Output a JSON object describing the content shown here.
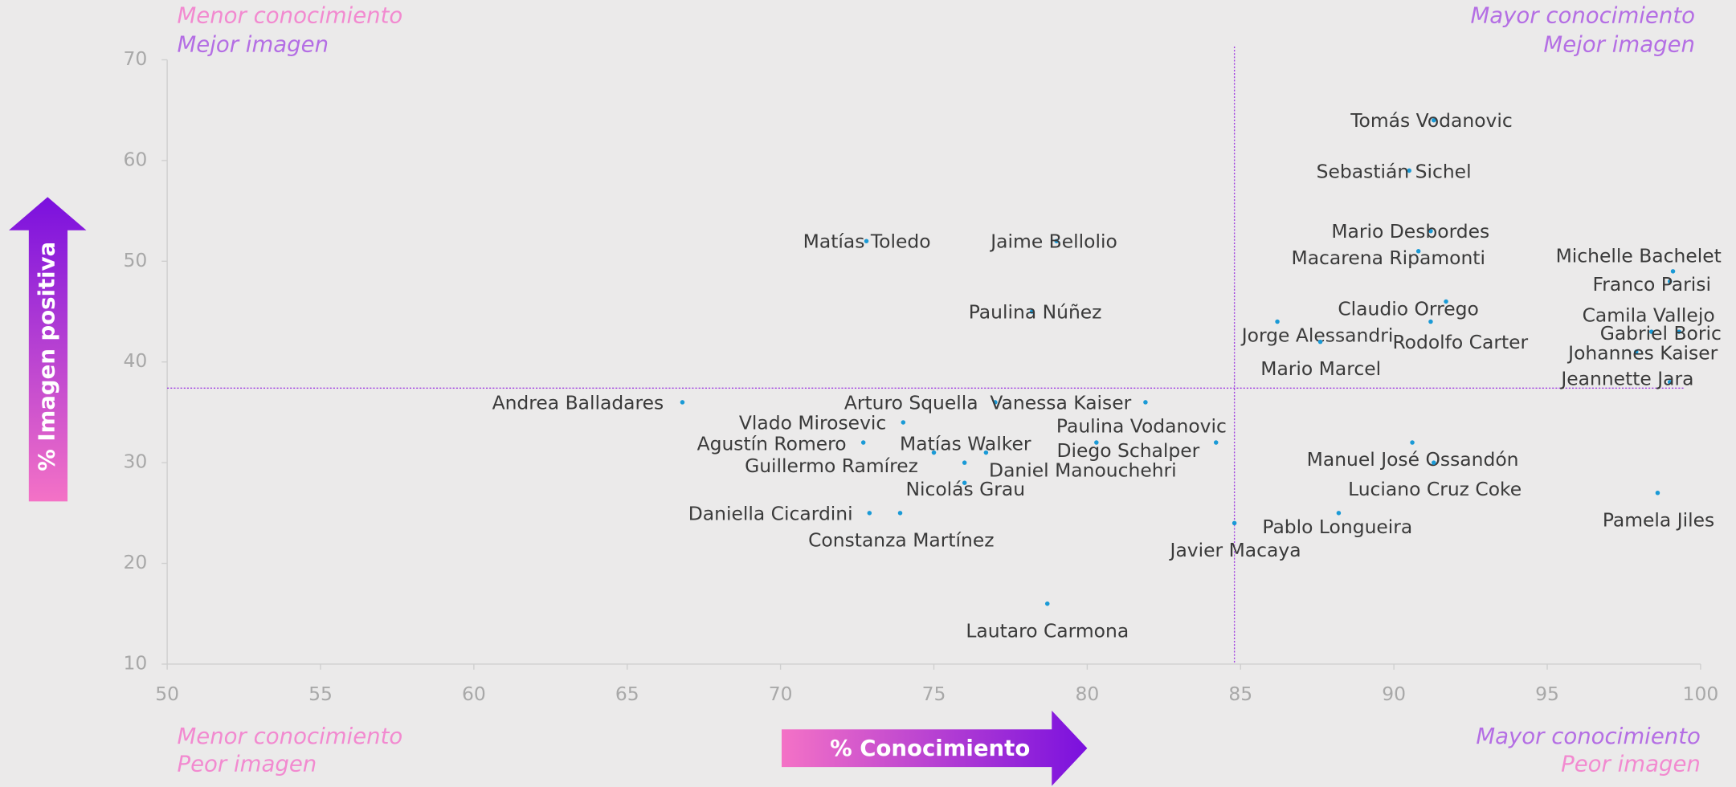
{
  "chart_data": {
    "type": "scatter",
    "x_label": "% Conocimiento",
    "y_label": "% Imagen positiva",
    "quadrants": {
      "top_left": [
        "Menor conocimiento",
        "Mejor imagen"
      ],
      "top_right": [
        "Mayor conocimiento",
        "Mejor imagen"
      ],
      "bottom_left": [
        "Menor conocimiento",
        "Peor imagen"
      ],
      "bottom_right": [
        "Mayor conocimiento",
        "Peor imagen"
      ]
    },
    "xlim": [
      50,
      100
    ],
    "xticks": [
      50,
      55,
      60,
      65,
      70,
      75,
      80,
      85,
      90,
      95,
      100
    ],
    "ylim": [
      10,
      70
    ],
    "yticks": [
      10,
      20,
      30,
      40,
      50,
      60,
      70
    ],
    "ref_x": 84.8,
    "ref_y": 37.4,
    "color": "#1a9ad6",
    "ref_color": "#a040e0",
    "labels": [
      "Tomás Vodanovic",
      "Sebastián Sichel",
      "Mario Desbordes",
      "Macarena Ripamonti",
      "Matías Toledo",
      "Jaime Bellolio",
      "Paulina Núñez",
      "Claudio Orrego",
      "Jorge Alessandri",
      "Rodolfo Carter",
      "Mario Marcel",
      "Michelle Bachelet",
      "Franco Parisi",
      "Camila Vallejo",
      "Gabriel Boric",
      "Johannes Kaiser",
      "Jeannette Jara",
      "Andrea Balladares",
      "Arturo Squella",
      "Vanessa Kaiser",
      "Vlado Mirosevic",
      "Paulina Vodanovic",
      "Agustín Romero",
      "Matías Walker",
      "Diego Schalper",
      "Guillermo Ramírez",
      "Daniel Manouchehri",
      "Manuel José Ossandón",
      "Nicolás Grau",
      "Luciano Cruz Coke",
      "Daniella Cicardini",
      "Constanza Martínez",
      "Pablo Longueira",
      "Javier Macaya",
      "Pamela Jiles",
      "Lautaro Carmona"
    ],
    "x": [
      91.3,
      90.5,
      91.2,
      90.8,
      72.8,
      79,
      78.2,
      91.7,
      86.2,
      91.2,
      87.6,
      99.1,
      99,
      98.4,
      99.3,
      97.9,
      99,
      66.8,
      77,
      81.9,
      74,
      84.2,
      72.7,
      75,
      80.3,
      76,
      76.7,
      90.6,
      76,
      91.3,
      72.9,
      73.9,
      88.2,
      84.8,
      98.6,
      78.7
    ],
    "values": [
      64,
      59,
      53,
      51,
      52,
      52,
      45,
      46,
      44,
      44,
      42,
      49,
      48,
      43,
      43,
      41,
      38,
      36,
      36,
      36,
      34,
      32,
      32,
      31,
      32,
      30,
      31,
      32,
      28,
      30,
      25,
      25,
      25,
      24,
      27,
      16
    ]
  }
}
